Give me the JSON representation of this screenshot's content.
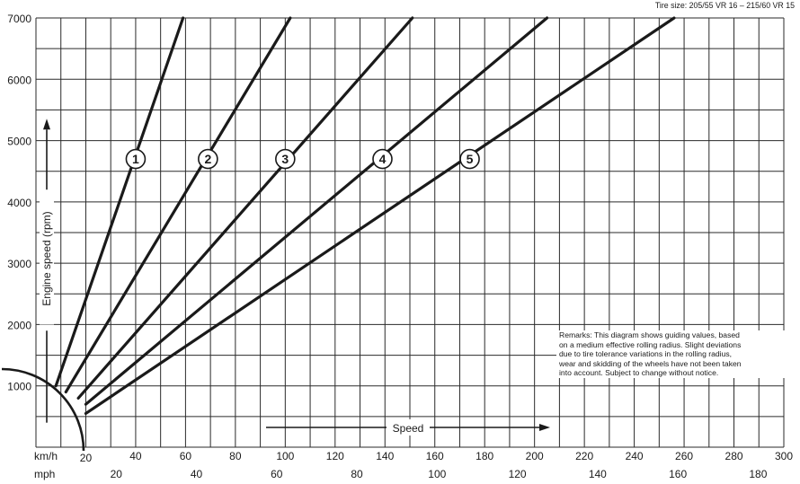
{
  "chart_data": {
    "type": "line",
    "tire_size": "Tire size: 205/55 VR 16 – 215/60 VR 15",
    "ylabel": "Engine speed (rpm)",
    "xlabel": "Speed",
    "xlim": [
      0,
      300
    ],
    "ylim": [
      0,
      7000
    ],
    "y_ticks": [
      "1000",
      "2000",
      "3000",
      "4000",
      "5000",
      "6000",
      "7000"
    ],
    "x_ticks_kmh": [
      "20",
      "40",
      "60",
      "80",
      "100",
      "120",
      "140",
      "160",
      "180",
      "200",
      "220",
      "240",
      "260",
      "280",
      "300"
    ],
    "x_ticks_mph": [
      "20",
      "40",
      "60",
      "80",
      "100",
      "120",
      "140",
      "160",
      "180"
    ],
    "x_unit_kmh": "km/h",
    "x_unit_mph": "mph",
    "grid": true,
    "series": [
      {
        "name": "1",
        "x": [
          8,
          59
        ],
        "y": [
          1000,
          7000
        ]
      },
      {
        "name": "2",
        "x": [
          12,
          102
        ],
        "y": [
          900,
          7000
        ]
      },
      {
        "name": "3",
        "x": [
          17,
          151
        ],
        "y": [
          800,
          7000
        ]
      },
      {
        "name": "4",
        "x": [
          20,
          205
        ],
        "y": [
          700,
          7000
        ]
      },
      {
        "name": "5",
        "x": [
          20,
          256
        ],
        "y": [
          550,
          7000
        ]
      }
    ],
    "series_label_positions": [
      {
        "name": "1",
        "x": 40,
        "y": 4700
      },
      {
        "name": "2",
        "x": 69,
        "y": 4700
      },
      {
        "name": "3",
        "x": 100,
        "y": 4700
      },
      {
        "name": "4",
        "x": 139,
        "y": 4700
      },
      {
        "name": "5",
        "x": 174,
        "y": 4700
      }
    ],
    "remarks": [
      "Remarks: This diagram shows guiding values, based",
      "on a medium effective rolling radius. Slight deviations",
      "due to tire tolerance variations in the rolling radius,",
      "wear and skidding of the wheels have not been taken",
      "into account.          Subject to change without notice."
    ]
  }
}
